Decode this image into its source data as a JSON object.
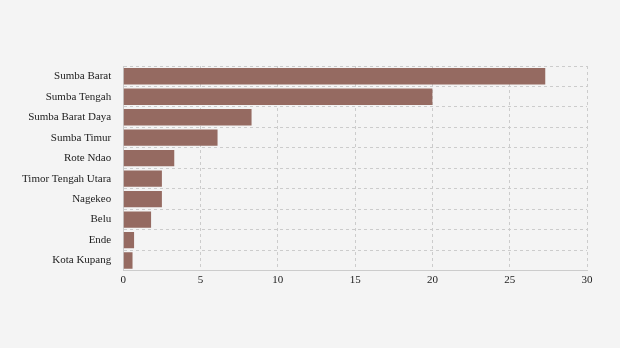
{
  "chart_data": {
    "type": "bar",
    "orientation": "horizontal",
    "categories": [
      "Sumba Barat",
      "Sumba Tengah",
      "Sumba Barat Daya",
      "Sumba Timur",
      "Rote Ndao",
      "Timor Tengah Utara",
      "Nagekeo",
      "Belu",
      "Ende",
      "Kota Kupang"
    ],
    "values": [
      27.3,
      20,
      8.3,
      6.1,
      3.3,
      2.5,
      2.5,
      1.8,
      0.7,
      0.6
    ],
    "color": "#956a61",
    "xlim": [
      0,
      30
    ],
    "xticks": [
      0,
      5,
      10,
      15,
      20,
      25,
      30
    ],
    "grid": true
  }
}
